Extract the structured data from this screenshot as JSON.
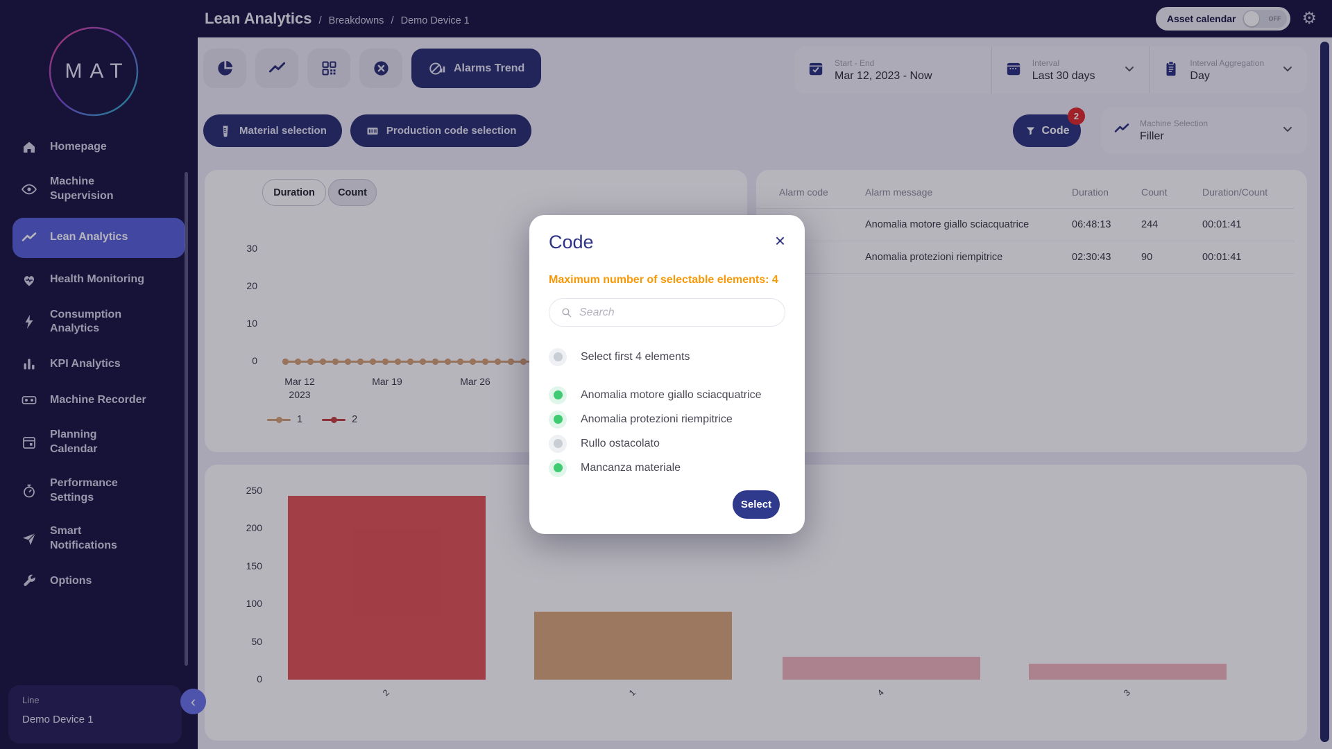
{
  "colors": {
    "sidebar_bg": "#1b1642",
    "active_item": "#5a63d8",
    "navy_button": "#2b3173",
    "warning_orange": "#f79806",
    "selected_green": "#3ecb72",
    "badge_red": "#e02b2b",
    "modal_title": "#2d3386"
  },
  "sidebar": {
    "logo": "MAT",
    "items": [
      {
        "label": "Homepage",
        "icon": "home-icon",
        "active": false
      },
      {
        "label": "Machine Supervision",
        "icon": "eye-icon",
        "active": false
      },
      {
        "label": "Lean Analytics",
        "icon": "trend-icon",
        "active": true
      },
      {
        "label": "Health Monitoring",
        "icon": "heart-icon",
        "active": false
      },
      {
        "label": "Consumption Analytics",
        "icon": "bolt-icon",
        "active": false
      },
      {
        "label": "KPI Analytics",
        "icon": "bar-chart-icon",
        "active": false
      },
      {
        "label": "Machine Recorder",
        "icon": "recorder-icon",
        "active": false
      },
      {
        "label": "Planning Calendar",
        "icon": "calendar-icon",
        "active": false
      },
      {
        "label": "Performance Settings",
        "icon": "gauge-icon",
        "active": false
      },
      {
        "label": "Smart Notifications",
        "icon": "send-icon",
        "active": false
      },
      {
        "label": "Options",
        "icon": "wrench-icon",
        "active": false
      }
    ],
    "device": {
      "label": "Line",
      "name": "Demo Device 1"
    }
  },
  "topbar": {
    "breadcrumb": {
      "title": "Lean Analytics",
      "separator": "/",
      "parts": [
        "Breakdowns",
        "Demo Device 1"
      ]
    },
    "asset_calendar": {
      "label": "Asset calendar",
      "state": "OFF"
    }
  },
  "toolbar": {
    "view_buttons": [
      "pie-chart-icon",
      "line-chart-icon",
      "qr-code-icon",
      "clear-icon"
    ],
    "active_button": {
      "label": "Alarms Trend",
      "icon": "alarms-trend-icon"
    },
    "selection_buttons": [
      {
        "label": "Material selection",
        "icon": "material-icon"
      },
      {
        "label": "Production code selection",
        "icon": "barcode-icon"
      }
    ],
    "code_filter": {
      "label": "Code",
      "badge": "2",
      "icon": "filter-icon"
    },
    "machine_selection": {
      "label": "Machine Selection",
      "value": "Filler",
      "icon": "trend-icon"
    }
  },
  "date_controls": {
    "start_end": {
      "label": "Start - End",
      "value": "Mar 12, 2023 - Now",
      "icon": "calendar-check-icon"
    },
    "interval": {
      "label": "Interval",
      "value": "Last 30 days",
      "icon": "calendar-icon"
    },
    "aggregation": {
      "label": "Interval Aggregation",
      "value": "Day",
      "icon": "clipboard-icon"
    }
  },
  "duration_count": {
    "options": [
      "Duration",
      "Count"
    ]
  },
  "alarm_table": {
    "headers": [
      "Alarm code",
      "Alarm message",
      "Duration",
      "Count",
      "Duration/Count"
    ],
    "rows": [
      {
        "code": "",
        "message": "Anomalia motore giallo sciacquatrice",
        "duration": "06:48:13",
        "count": "244",
        "ratio": "00:01:41"
      },
      {
        "code": "",
        "message": "Anomalia protezioni riempitrice",
        "duration": "02:30:43",
        "count": "90",
        "ratio": "00:01:41"
      }
    ]
  },
  "chart_data": [
    {
      "id": "alarms-trend-line",
      "type": "line",
      "ylim": [
        0,
        30
      ],
      "y_ticks": [
        30,
        20,
        10,
        0
      ],
      "x_ticks": [
        [
          "Mar 12",
          "2023"
        ],
        [
          "Mar 19",
          ""
        ],
        [
          "Mar 26",
          ""
        ]
      ],
      "series": [
        {
          "name": "2",
          "color": "#c7403f",
          "values": [
            0,
            0,
            0,
            0,
            0,
            0,
            0,
            0,
            0,
            0,
            0,
            0,
            0,
            0,
            0,
            0,
            0,
            0,
            0,
            0,
            0,
            0,
            0,
            0,
            0,
            0,
            0,
            0,
            0,
            0,
            0,
            0,
            0,
            0,
            0,
            0,
            0
          ]
        },
        {
          "name": "1",
          "color": "#d6a276",
          "values": [
            0,
            0,
            0,
            0,
            0,
            0,
            0,
            0,
            0,
            0,
            0,
            0,
            0,
            0,
            0,
            0,
            0,
            0,
            0,
            0,
            0,
            0,
            0,
            0,
            0,
            0,
            0,
            0,
            0,
            0,
            0,
            0,
            0,
            0,
            0,
            0,
            0
          ]
        }
      ],
      "legend_position": "bottom-left",
      "grid": false
    },
    {
      "id": "alarms-count-bars",
      "type": "bar",
      "categories": [
        "2",
        "1",
        "4",
        "3"
      ],
      "values": [
        244,
        90,
        30,
        21
      ],
      "colors": [
        "#e25555",
        "#dba87b",
        "#f2b7bf",
        "#f2b7bf"
      ],
      "ylim": [
        0,
        250
      ],
      "y_ticks": [
        250,
        200,
        150,
        100,
        50,
        0
      ],
      "grid": false
    }
  ],
  "modal": {
    "title": "Code",
    "warning": "Maximum number of selectable elements: 4",
    "search_placeholder": "Search",
    "options": [
      {
        "label": "Select first 4 elements",
        "selected": false
      },
      {
        "label": "Anomalia motore giallo sciacquatrice",
        "selected": true
      },
      {
        "label": "Anomalia protezioni riempitrice",
        "selected": true
      },
      {
        "label": "Rullo ostacolato",
        "selected": false
      },
      {
        "label": "Mancanza materiale",
        "selected": true
      }
    ],
    "select_label": "Select"
  }
}
